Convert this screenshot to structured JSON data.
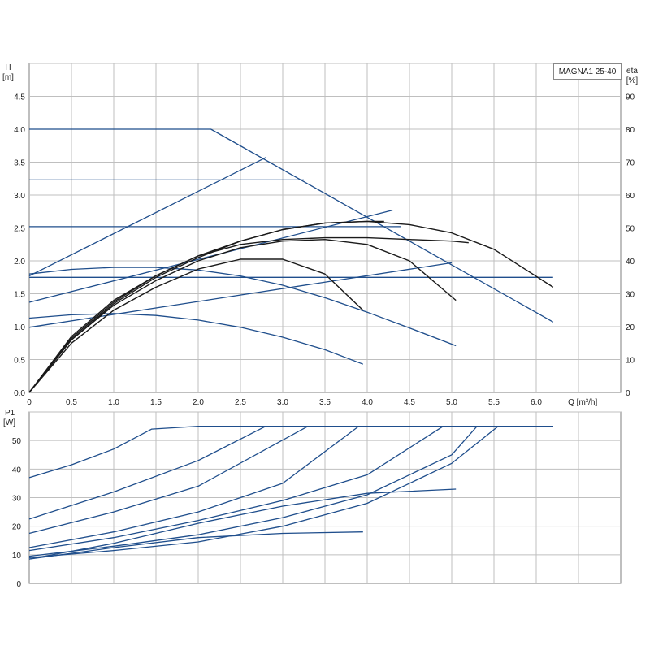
{
  "title": "MAGNA1 25-40",
  "chart_data": [
    {
      "type": "line",
      "name": "head",
      "ylabel_left": [
        "H",
        "[m]"
      ],
      "ylabel_right": [
        "eta",
        "[%]"
      ],
      "xlabel": "Q [m³/h]",
      "xlim": [
        0,
        7
      ],
      "ylim": [
        0,
        5
      ],
      "ylim_right": [
        0,
        100
      ],
      "x_ticks": [
        "0",
        "0.5",
        "1.0",
        "1.5",
        "2.0",
        "2.5",
        "3.0",
        "3.5",
        "4.0",
        "4.5",
        "5.0",
        "5.5",
        "6.0"
      ],
      "y_ticks": [
        "0.0",
        "0.5",
        "1.0",
        "1.5",
        "2.0",
        "2.5",
        "3.0",
        "3.5",
        "4.0",
        "4.5"
      ],
      "y_ticks_right": [
        "0",
        "10",
        "20",
        "30",
        "40",
        "50",
        "60",
        "70",
        "80",
        "90"
      ],
      "grid": true,
      "colors": {
        "head": "#1f4e8c",
        "efficiency": "#1a1a1a",
        "grid": "#bfbfbf"
      },
      "series": [
        {
          "kind": "head",
          "x": [
            0,
            2.15,
            6.2
          ],
          "y": [
            4.0,
            4.0,
            1.07
          ]
        },
        {
          "kind": "head",
          "x": [
            0,
            3.25
          ],
          "y": [
            3.23,
            3.23
          ]
        },
        {
          "kind": "head",
          "x": [
            0,
            4.4
          ],
          "y": [
            2.52,
            2.52
          ]
        },
        {
          "kind": "head",
          "x": [
            0,
            6.2
          ],
          "y": [
            1.75,
            1.75
          ]
        },
        {
          "kind": "head",
          "x": [
            0,
            2.8
          ],
          "y": [
            1.77,
            3.57
          ]
        },
        {
          "kind": "head",
          "x": [
            0,
            4.3
          ],
          "y": [
            1.37,
            2.77
          ]
        },
        {
          "kind": "head",
          "x": [
            0,
            5.0
          ],
          "y": [
            0.99,
            1.97
          ]
        },
        {
          "kind": "head",
          "x": [
            0,
            0.5,
            1.0,
            1.5,
            2.0,
            2.5,
            3.0,
            3.5,
            4.0,
            4.5,
            5.05
          ],
          "y": [
            1.8,
            1.87,
            1.9,
            1.9,
            1.86,
            1.77,
            1.63,
            1.44,
            1.22,
            0.98,
            0.71
          ]
        },
        {
          "kind": "head",
          "x": [
            0,
            0.5,
            1.0,
            1.5,
            2.0,
            2.5,
            3.0,
            3.5,
            3.95
          ],
          "y": [
            1.13,
            1.18,
            1.2,
            1.17,
            1.1,
            0.99,
            0.84,
            0.65,
            0.43
          ]
        },
        {
          "kind": "efficiency",
          "x": [
            0,
            0.5,
            1.0,
            1.5,
            2.0,
            2.5,
            3.0,
            3.5,
            4.0,
            4.5,
            5.0,
            5.5,
            6.2
          ],
          "y": [
            0,
            16,
            27,
            35,
            41,
            46,
            49.5,
            51.5,
            52,
            51,
            48.5,
            43.5,
            32
          ]
        },
        {
          "kind": "efficiency",
          "x": [
            0,
            0.5,
            1.0,
            1.5,
            2.0,
            2.5,
            3.0,
            3.5,
            4.0,
            4.5,
            5.05
          ],
          "y": [
            0,
            16,
            26.5,
            34,
            40,
            44,
            46,
            46.5,
            45,
            40,
            28
          ]
        },
        {
          "kind": "efficiency",
          "x": [
            0,
            0.5,
            1.0,
            1.5,
            2.0,
            2.5,
            3.0,
            3.5,
            3.95
          ],
          "y": [
            0,
            15,
            25,
            32,
            37.5,
            40.5,
            40.5,
            36,
            25
          ]
        },
        {
          "kind": "efficiency",
          "x": [
            0,
            0.5,
            1.0,
            1.5,
            2.0,
            2.5,
            3.0,
            3.5,
            4.0,
            4.5,
            5.0,
            5.2
          ],
          "y": [
            0,
            17,
            28,
            35.5,
            41.5,
            45,
            46.5,
            47,
            47,
            46.5,
            46,
            45.5
          ]
        },
        {
          "kind": "efficiency",
          "x": [
            0,
            0.5,
            1.0,
            1.5,
            2.0,
            2.5,
            3.0,
            3.5,
            4.0,
            4.2
          ],
          "y": [
            0,
            16.5,
            27.5,
            35.5,
            41.5,
            46,
            49.5,
            51.5,
            52,
            52
          ]
        }
      ]
    },
    {
      "type": "line",
      "name": "power",
      "ylabel_left": [
        "P1",
        "[W]"
      ],
      "xlim": [
        0,
        7
      ],
      "ylim": [
        0,
        60
      ],
      "y_ticks": [
        "0",
        "10",
        "20",
        "30",
        "40",
        "50"
      ],
      "grid": true,
      "series": [
        {
          "x": [
            0,
            0.5,
            1.0,
            1.45,
            2.0,
            6.2
          ],
          "y": [
            37,
            41.5,
            47,
            54,
            55,
            55
          ]
        },
        {
          "x": [
            0,
            1.0,
            2.0,
            2.8,
            6.2
          ],
          "y": [
            22.5,
            32,
            43,
            55,
            55
          ]
        },
        {
          "x": [
            0,
            1.0,
            2.0,
            3.3,
            6.2
          ],
          "y": [
            17.5,
            25,
            34,
            55,
            55
          ]
        },
        {
          "x": [
            0,
            1.0,
            2.0,
            3.0,
            3.9,
            6.2
          ],
          "y": [
            12.5,
            18,
            25,
            35,
            55,
            55
          ]
        },
        {
          "x": [
            0,
            1.0,
            2.0,
            3.0,
            4.0,
            4.9,
            6.2
          ],
          "y": [
            11.5,
            16,
            22,
            29,
            38,
            55,
            55
          ]
        },
        {
          "x": [
            0,
            1.0,
            2.0,
            3.0,
            4.0,
            5.0,
            5.3,
            6.2
          ],
          "y": [
            9.5,
            13,
            17,
            23,
            31,
            45,
            55,
            55
          ]
        },
        {
          "x": [
            0,
            1.0,
            2.0,
            3.0,
            4.0,
            5.05
          ],
          "y": [
            8.5,
            14,
            21,
            27,
            31.5,
            33
          ]
        },
        {
          "x": [
            0,
            1.0,
            2.0,
            3.0,
            3.95
          ],
          "y": [
            8.5,
            12.5,
            16,
            17.5,
            18
          ]
        },
        {
          "x": [
            0,
            1.0,
            2.0,
            3.0,
            4.0,
            5.0,
            5.55,
            6.2
          ],
          "y": [
            9,
            11.5,
            14.5,
            20,
            28,
            42,
            55,
            55
          ]
        }
      ]
    }
  ]
}
